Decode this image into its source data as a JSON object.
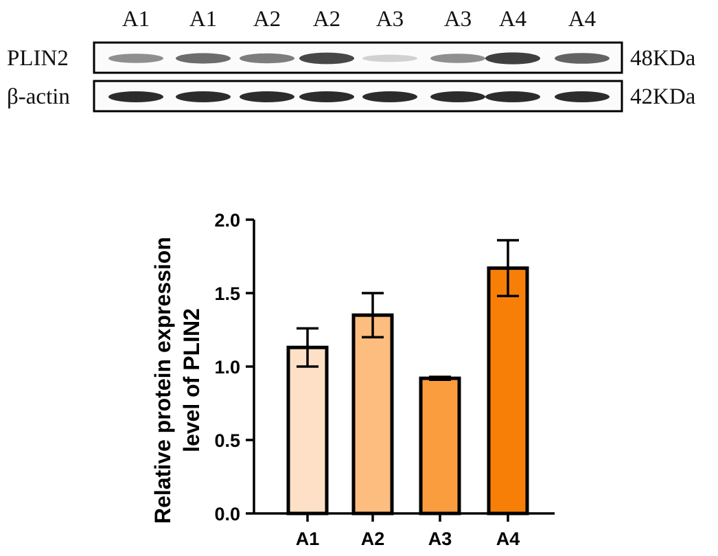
{
  "blot": {
    "lane_labels": [
      "A1",
      "A1",
      "A2",
      "A2",
      "A3",
      "A3",
      "A4",
      "A4"
    ],
    "rows": [
      {
        "label": "PLIN2",
        "size": "48KDa",
        "intensity": [
          0.45,
          0.65,
          0.55,
          0.85,
          0.08,
          0.45,
          0.9,
          0.7
        ]
      },
      {
        "label": "β-actin",
        "size": "42KDa",
        "intensity": [
          1,
          1,
          1,
          1,
          1,
          1,
          1,
          1
        ]
      }
    ]
  },
  "chart_data": {
    "type": "bar",
    "categories": [
      "A1",
      "A2",
      "A3",
      "A4"
    ],
    "values": [
      1.13,
      1.35,
      0.92,
      1.67
    ],
    "errors": [
      0.13,
      0.15,
      0.01,
      0.19
    ],
    "ylabel_lines": [
      "Relative protein expression",
      "level of PLIN2"
    ],
    "ylim": [
      0,
      2.0
    ],
    "yticks": [
      "0.0",
      "0.5",
      "1.0",
      "1.5",
      "2.0"
    ],
    "ytick_values": [
      0,
      0.5,
      1.0,
      1.5,
      2.0
    ],
    "colors": [
      "#fde0c5",
      "#fcbd7f",
      "#fa9d3e",
      "#f77f08"
    ]
  }
}
